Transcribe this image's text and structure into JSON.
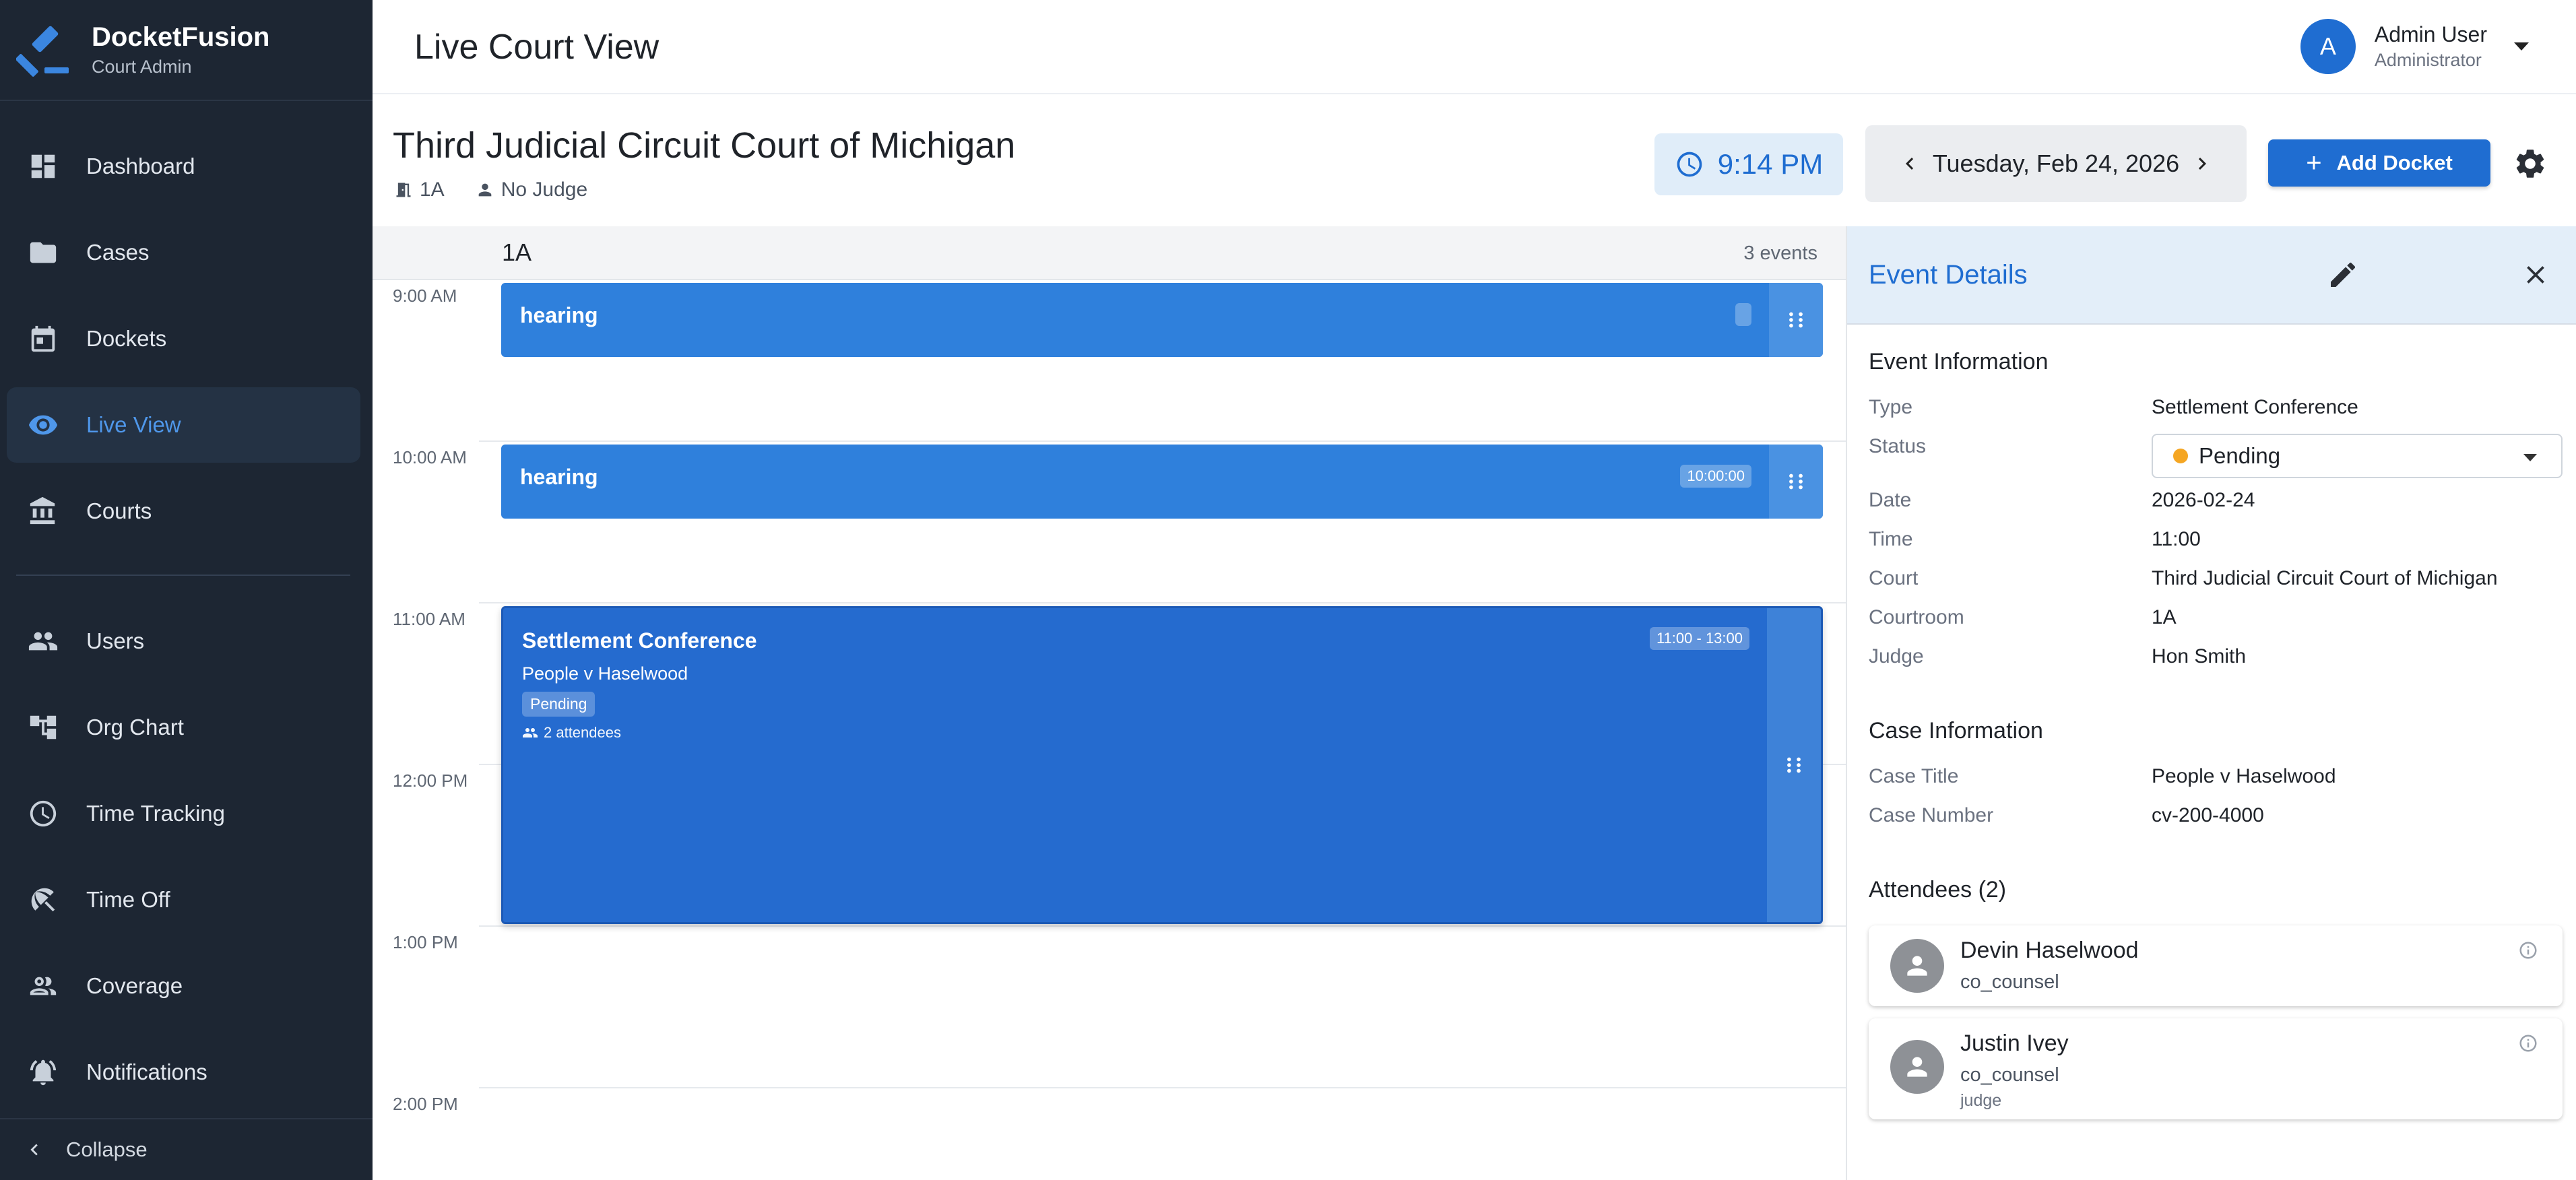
{
  "app": {
    "name": "DocketFusion",
    "subtitle": "Court Admin"
  },
  "sidebar": {
    "items": [
      {
        "label": "Dashboard",
        "icon": "dashboard-icon"
      },
      {
        "label": "Cases",
        "icon": "folder-icon"
      },
      {
        "label": "Dockets",
        "icon": "calendar-icon"
      },
      {
        "label": "Live View",
        "icon": "eye-icon",
        "active": true
      },
      {
        "label": "Courts",
        "icon": "bank-icon"
      },
      {
        "label": "Users",
        "icon": "people-icon"
      },
      {
        "label": "Org Chart",
        "icon": "org-chart-icon"
      },
      {
        "label": "Time Tracking",
        "icon": "clock-icon"
      },
      {
        "label": "Time Off",
        "icon": "beach-icon"
      },
      {
        "label": "Coverage",
        "icon": "group-icon"
      },
      {
        "label": "Notifications",
        "icon": "bell-icon"
      }
    ],
    "collapse_label": "Collapse"
  },
  "header": {
    "title": "Live Court View",
    "user": {
      "initial": "A",
      "name": "Admin User",
      "role": "Administrator"
    }
  },
  "court": {
    "title": "Third Judicial Circuit Court of Michigan",
    "room": "1A",
    "judge": "No Judge",
    "clock": "9:14 PM",
    "date": "Tuesday, Feb 24, 2026",
    "add_label": "Add Docket"
  },
  "schedule": {
    "room": "1A",
    "event_count": "3 events",
    "hours": [
      "9:00 AM",
      "10:00 AM",
      "11:00 AM",
      "12:00 PM",
      "1:00 PM",
      "2:00 PM"
    ],
    "events": [
      {
        "title": "hearing",
        "time_tag": ""
      },
      {
        "title": "hearing",
        "time_tag": "10:00:00"
      },
      {
        "title": "Settlement Conference",
        "time_tag": "11:00 - 13:00",
        "case": "People v Haselwood",
        "status": "Pending",
        "attendees": "2 attendees"
      }
    ]
  },
  "details": {
    "title": "Event Details",
    "event_section": "Event Information",
    "event_info": {
      "type_label": "Type",
      "type": "Settlement Conference",
      "status_label": "Status",
      "status": "Pending",
      "date_label": "Date",
      "date": "2026-02-24",
      "time_label": "Time",
      "time": "11:00",
      "court_label": "Court",
      "court": "Third Judicial Circuit Court of Michigan",
      "courtroom_label": "Courtroom",
      "courtroom": "1A",
      "judge_label": "Judge",
      "judge": "Hon Smith"
    },
    "case_section": "Case Information",
    "case_info": {
      "title_label": "Case Title",
      "title": "People v Haselwood",
      "number_label": "Case Number",
      "number": "cv-200-4000"
    },
    "attendees_section": "Attendees (2)",
    "attendees": [
      {
        "name": "Devin Haselwood",
        "role": "co_counsel",
        "extra": ""
      },
      {
        "name": "Justin Ivey",
        "role": "co_counsel",
        "extra": "judge"
      }
    ]
  },
  "colors": {
    "accent": "#1f6dd1",
    "sidebar_bg": "#1d2633",
    "event": "#2f80dc",
    "pending": "#f5a623"
  }
}
